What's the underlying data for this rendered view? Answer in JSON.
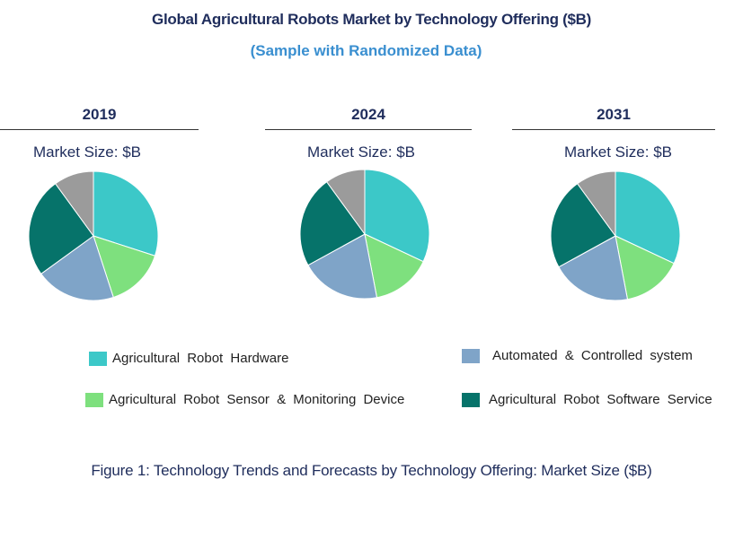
{
  "header": {
    "title": "Global Agricultural Robots Market by Technology Offering  ($B)",
    "subtitle": "(Sample with Randomized Data)"
  },
  "caption": "Figure 1: Technology Trends and Forecasts by Technology Offering: Market Size ($B)",
  "colors": {
    "hardware": "#3cc8c8",
    "sensor": "#7ee07e",
    "automated": "#7fa4c8",
    "software": "#06736a",
    "other": "#9b9b9b"
  },
  "chart_data": [
    {
      "type": "pie",
      "title": "2019",
      "subtitle": "Market Size: $B",
      "categories": [
        "Agricultural  Robot  Hardware",
        "Agricultural  Robot  Sensor  & Monitoring  Device",
        "Automated  & Controlled  system",
        "Agricultural  Robot  Software  Service",
        ""
      ],
      "values": [
        30,
        15,
        20,
        25,
        10
      ]
    },
    {
      "type": "pie",
      "title": "2024",
      "subtitle": "Market Size: $B",
      "categories": [
        "Agricultural  Robot  Hardware",
        "Agricultural  Robot  Sensor  & Monitoring  Device",
        "Automated  & Controlled  system",
        "Agricultural  Robot  Software  Service",
        ""
      ],
      "values": [
        32,
        15,
        20,
        23,
        10
      ]
    },
    {
      "type": "pie",
      "title": "2031",
      "subtitle": "Market Size: $B",
      "categories": [
        "Agricultural  Robot  Hardware",
        "Agricultural  Robot  Sensor  & Monitoring  Device",
        "Automated  & Controlled  system",
        "Agricultural  Robot  Software  Service",
        ""
      ],
      "values": [
        32,
        15,
        20,
        23,
        10
      ]
    }
  ],
  "legend": [
    {
      "label": "Agricultural  Robot  Hardware",
      "color": "#3cc8c8"
    },
    {
      "label": "Automated  & Controlled  system",
      "color": "#7fa4c8"
    },
    {
      "label": "Agricultural  Robot  Sensor  & Monitoring  Device",
      "color": "#7ee07e"
    },
    {
      "label": "Agricultural  Robot  Software  Service",
      "color": "#06736a"
    }
  ]
}
